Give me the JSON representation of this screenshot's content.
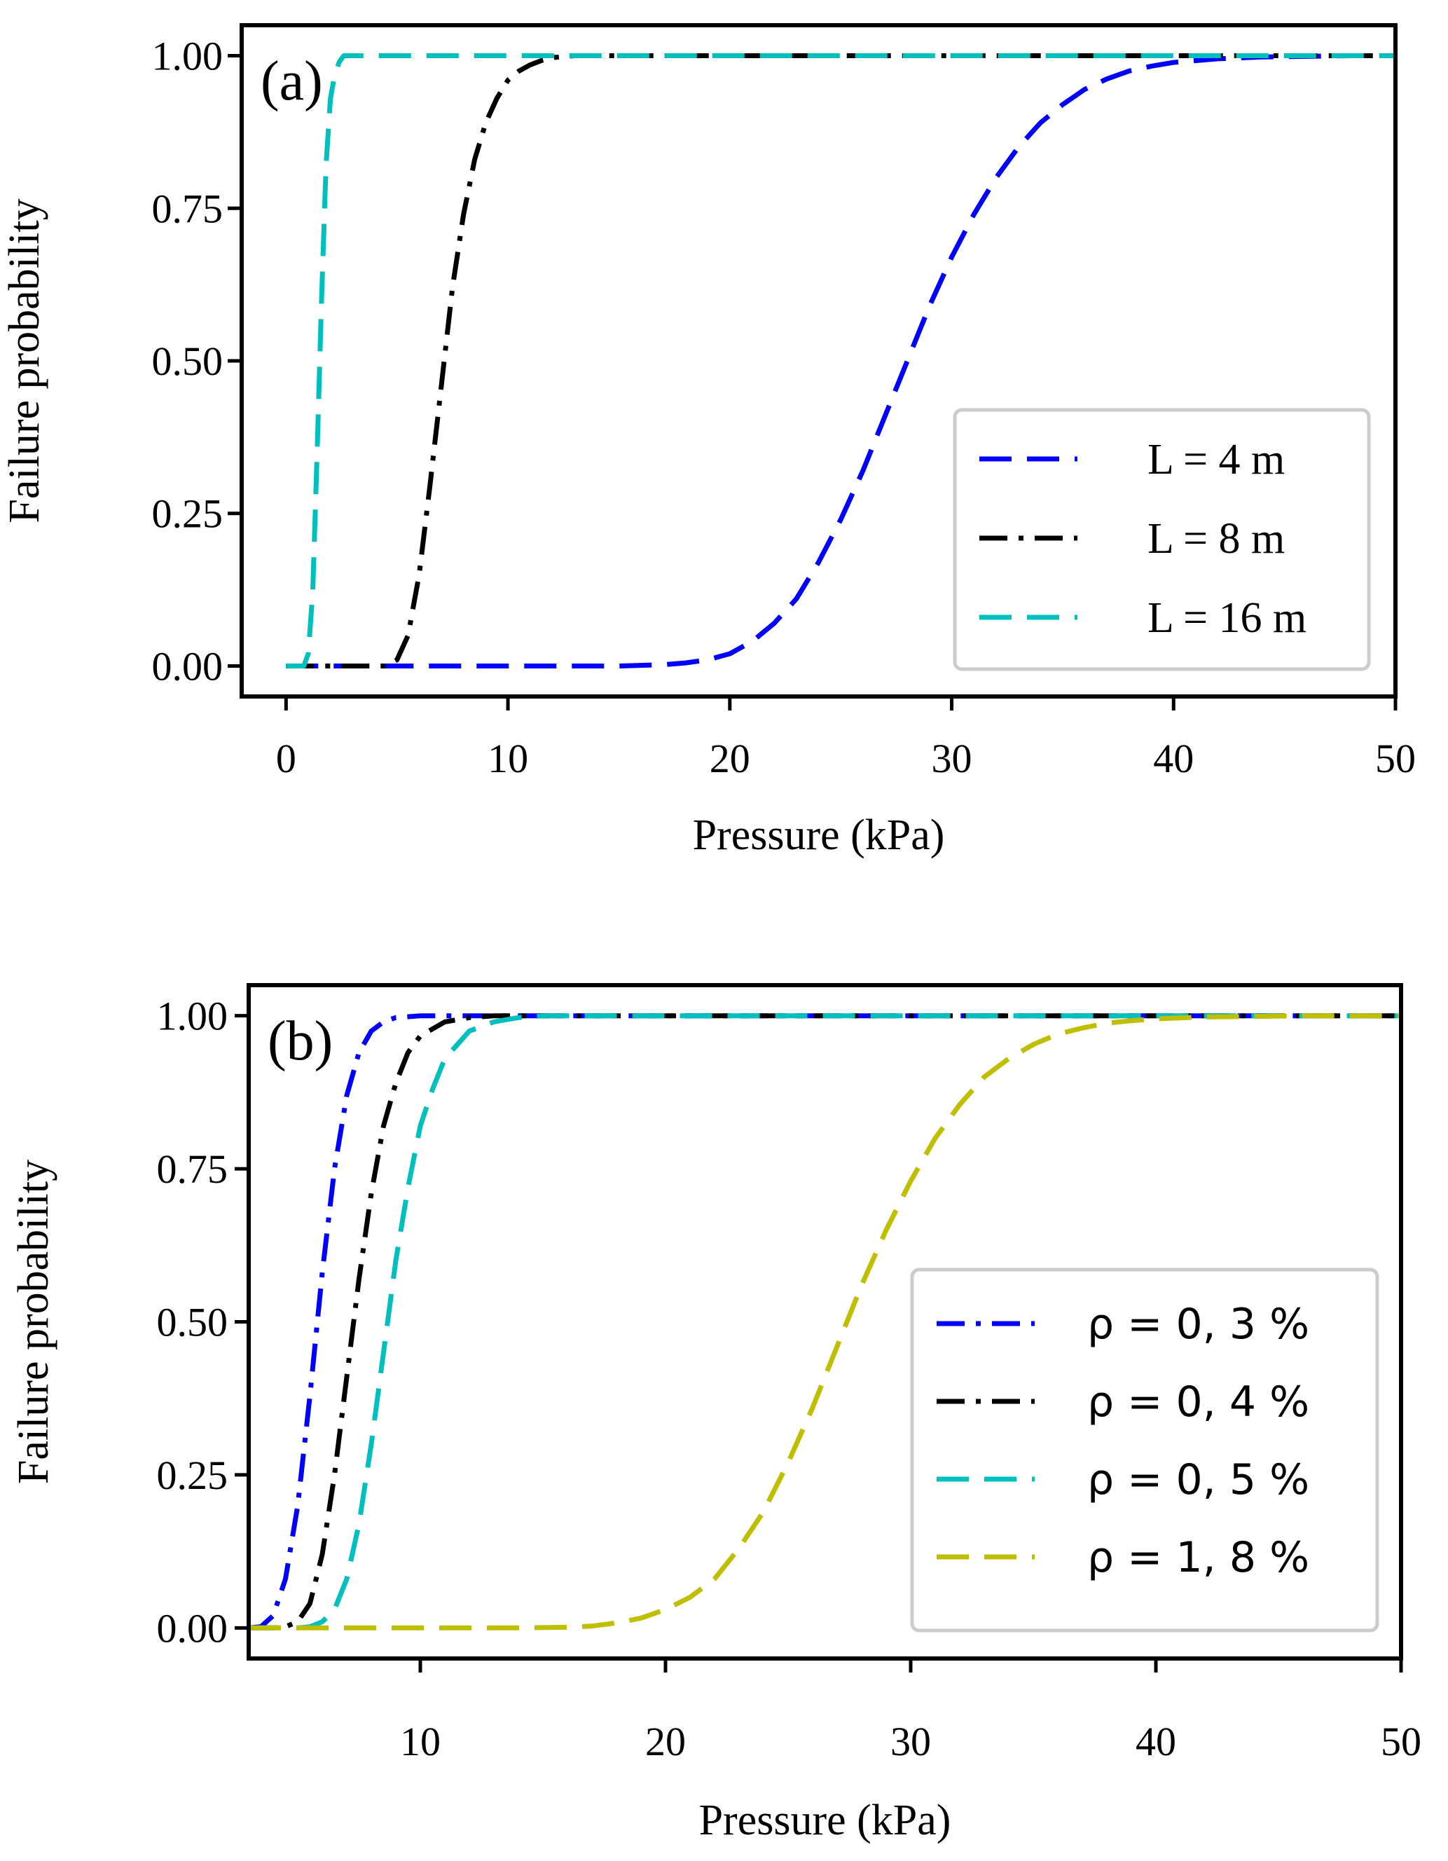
{
  "chart_data": [
    {
      "type": "line",
      "panel_label": "(a)",
      "xlabel": "Pressure (kPa)",
      "ylabel": "Failure probability",
      "xlim": [
        -2,
        50
      ],
      "ylim": [
        -0.05,
        1.05
      ],
      "xticks": [
        0,
        10,
        20,
        30,
        40,
        50
      ],
      "xtick_labels": [
        "0",
        "10",
        "20",
        "30",
        "40",
        "50"
      ],
      "yticks": [
        0,
        0.25,
        0.5,
        0.75,
        1.0
      ],
      "ytick_labels": [
        "0.00",
        "0.25",
        "0.50",
        "0.75",
        "1.00"
      ],
      "grid": false,
      "legend_position": "center-right",
      "series": [
        {
          "name": "L = 4 m",
          "color": "#0000ff",
          "style": "dashed",
          "x": [
            0,
            10,
            15,
            17,
            18,
            19,
            20,
            21,
            22,
            23,
            24,
            25,
            26,
            27,
            28,
            29,
            30,
            31,
            32,
            33,
            34,
            35,
            36,
            37,
            38,
            39,
            40,
            42,
            44,
            46,
            48,
            50
          ],
          "values": [
            0,
            0,
            0,
            0.002,
            0.005,
            0.01,
            0.02,
            0.04,
            0.07,
            0.11,
            0.17,
            0.24,
            0.32,
            0.41,
            0.5,
            0.59,
            0.67,
            0.74,
            0.8,
            0.85,
            0.89,
            0.92,
            0.945,
            0.962,
            0.975,
            0.983,
            0.989,
            0.995,
            0.998,
            0.999,
            1.0,
            1.0
          ]
        },
        {
          "name": "L = 8 m",
          "color": "#000000",
          "style": "dashdot",
          "x": [
            0,
            3,
            4.5,
            5,
            5.5,
            6,
            6.5,
            7,
            7.5,
            8,
            8.5,
            9,
            9.5,
            10,
            10.5,
            11,
            11.5,
            12,
            13,
            50
          ],
          "values": [
            0,
            0,
            0,
            0.01,
            0.05,
            0.15,
            0.3,
            0.46,
            0.62,
            0.74,
            0.83,
            0.89,
            0.93,
            0.96,
            0.975,
            0.985,
            0.992,
            0.997,
            1.0,
            1.0
          ]
        },
        {
          "name": "L = 16 m",
          "color": "#00bfbf",
          "style": "dashed",
          "x": [
            0,
            0.8,
            1.0,
            1.2,
            1.4,
            1.6,
            1.8,
            2.0,
            2.2,
            2.4,
            2.6,
            3.0,
            50
          ],
          "values": [
            0,
            0,
            0.02,
            0.12,
            0.35,
            0.6,
            0.82,
            0.93,
            0.97,
            0.99,
            1.0,
            1.0,
            1.0
          ]
        }
      ]
    },
    {
      "type": "line",
      "panel_label": "(b)",
      "xlabel": "Pressure (kPa)",
      "ylabel": "Failure probability",
      "xlim": [
        3,
        50
      ],
      "ylim": [
        -0.05,
        1.05
      ],
      "xticks": [
        10,
        20,
        30,
        40,
        50
      ],
      "xtick_labels": [
        "10",
        "20",
        "30",
        "40",
        "50"
      ],
      "yticks": [
        0,
        0.25,
        0.5,
        0.75,
        1.0
      ],
      "ytick_labels": [
        "0.00",
        "0.25",
        "0.50",
        "0.75",
        "1.00"
      ],
      "grid": false,
      "legend_position": "center-right",
      "series": [
        {
          "name": "ρ = 0, 3 %",
          "color": "#0000ff",
          "style": "dashdot",
          "x": [
            3,
            3.5,
            4,
            4.5,
            5,
            5.5,
            6,
            6.5,
            7,
            7.5,
            8,
            8.5,
            9,
            10,
            50
          ],
          "values": [
            0,
            0.002,
            0.02,
            0.08,
            0.2,
            0.38,
            0.58,
            0.75,
            0.87,
            0.94,
            0.975,
            0.99,
            0.997,
            1.0,
            1.0
          ]
        },
        {
          "name": "ρ = 0, 4 %",
          "color": "#000000",
          "style": "dashdot",
          "x": [
            3,
            4,
            4.5,
            5,
            5.5,
            6,
            6.5,
            7,
            7.5,
            8,
            8.5,
            9,
            9.5,
            10,
            11,
            12,
            13,
            50
          ],
          "values": [
            0,
            0,
            0.002,
            0.01,
            0.04,
            0.12,
            0.25,
            0.41,
            0.57,
            0.71,
            0.82,
            0.89,
            0.94,
            0.967,
            0.99,
            0.997,
            1.0,
            1.0
          ]
        },
        {
          "name": "ρ = 0, 5 %",
          "color": "#00bfbf",
          "style": "dashed",
          "x": [
            3,
            5,
            5.5,
            6,
            6.5,
            7,
            7.5,
            8,
            8.5,
            9,
            9.5,
            10,
            10.5,
            11,
            12,
            13,
            14,
            15,
            50
          ],
          "values": [
            0,
            0,
            0.002,
            0.01,
            0.03,
            0.08,
            0.17,
            0.3,
            0.45,
            0.6,
            0.72,
            0.82,
            0.88,
            0.93,
            0.975,
            0.99,
            0.997,
            1.0,
            1.0
          ]
        },
        {
          "name": "ρ = 1, 8 %",
          "color": "#bfbf00",
          "style": "dashed",
          "x": [
            3,
            14,
            16,
            17,
            18,
            19,
            20,
            21,
            22,
            23,
            24,
            25,
            26,
            27,
            28,
            29,
            30,
            31,
            32,
            33,
            34,
            35,
            36,
            37,
            38,
            39,
            40,
            42,
            44,
            46,
            50
          ],
          "values": [
            0,
            0,
            0.001,
            0.003,
            0.008,
            0.016,
            0.03,
            0.05,
            0.08,
            0.13,
            0.19,
            0.27,
            0.36,
            0.46,
            0.56,
            0.65,
            0.73,
            0.8,
            0.855,
            0.9,
            0.93,
            0.953,
            0.97,
            0.98,
            0.988,
            0.992,
            0.995,
            0.998,
            0.999,
            1.0,
            1.0
          ]
        }
      ]
    }
  ]
}
